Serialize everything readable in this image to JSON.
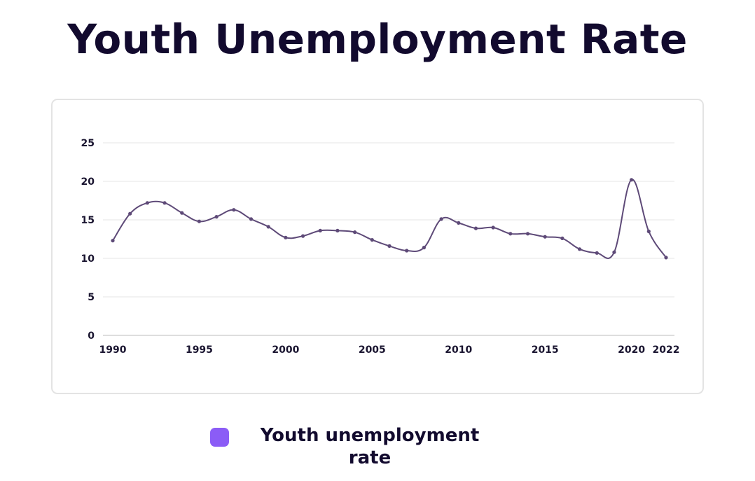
{
  "title": "Youth Unemployment Rate",
  "legend": {
    "label": "Youth unemployment rate",
    "color": "#8b5cf6"
  },
  "colors": {
    "line": "#5e4a78",
    "grid": "#e6e6e6",
    "baseline": "#bdbdbd",
    "text": "#120a2e"
  },
  "chart_data": {
    "type": "line",
    "title": "Youth Unemployment Rate",
    "xlabel": "",
    "ylabel": "",
    "ylim": [
      0,
      25
    ],
    "yticks": [
      0,
      5,
      10,
      15,
      20,
      25
    ],
    "xticks": [
      1990,
      1995,
      2000,
      2005,
      2010,
      2015,
      2020,
      2022
    ],
    "grid": true,
    "legend_position": "bottom",
    "x": [
      1990,
      1991,
      1992,
      1993,
      1994,
      1995,
      1996,
      1997,
      1998,
      1999,
      2000,
      2001,
      2002,
      2003,
      2004,
      2005,
      2006,
      2007,
      2008,
      2009,
      2010,
      2011,
      2012,
      2013,
      2014,
      2015,
      2016,
      2017,
      2018,
      2019,
      2020,
      2021,
      2022
    ],
    "series": [
      {
        "name": "Youth unemployment rate",
        "values": [
          12.3,
          15.8,
          17.2,
          17.2,
          15.9,
          14.8,
          15.4,
          16.3,
          15.1,
          14.1,
          12.7,
          12.9,
          13.6,
          13.6,
          13.4,
          12.4,
          11.6,
          11.0,
          11.4,
          15.1,
          14.6,
          13.9,
          14.0,
          13.2,
          13.2,
          12.8,
          12.6,
          11.2,
          10.7,
          10.8,
          20.2,
          13.5,
          10.1
        ]
      }
    ]
  }
}
